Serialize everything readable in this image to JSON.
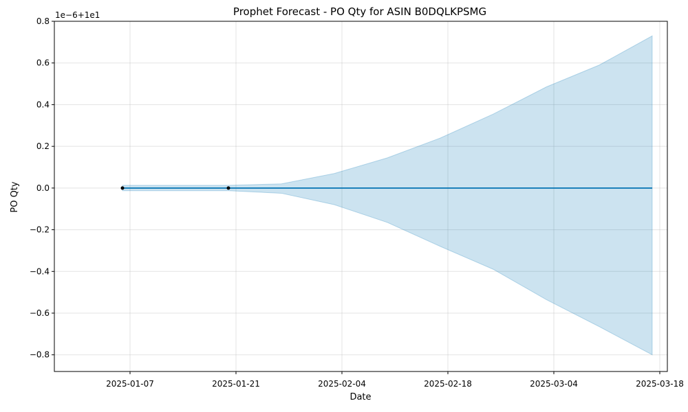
{
  "chart_data": {
    "type": "line",
    "title": "Prophet Forecast - PO Qty for ASIN B0DQLKPSMG",
    "xlabel": "Date",
    "ylabel": "PO Qty",
    "y_offset_label": "1e−6+1e1",
    "ylim": [
      -0.88,
      0.8
    ],
    "y_ticks": [
      -0.8,
      -0.6,
      -0.4,
      -0.2,
      0.0,
      0.2,
      0.4,
      0.6,
      0.8
    ],
    "y_tick_labels": [
      "−0.8",
      "−0.6",
      "−0.4",
      "−0.2",
      "0.0",
      "0.2",
      "0.4",
      "0.6",
      "0.8"
    ],
    "xlim": [
      "2024-12-28",
      "2025-03-19"
    ],
    "x_ticks": [
      "2025-01-07",
      "2025-01-21",
      "2025-02-04",
      "2025-02-18",
      "2025-03-04",
      "2025-03-18"
    ],
    "grid": true,
    "series": [
      {
        "kind": "observed",
        "color": "#000000",
        "points": [
          {
            "x": "2025-01-06",
            "y": 0.0
          },
          {
            "x": "2025-01-20",
            "y": 0.0
          }
        ]
      },
      {
        "kind": "forecast",
        "color": "#0072B2",
        "points": [
          {
            "x": "2025-01-06",
            "y": 0.0
          },
          {
            "x": "2025-03-17",
            "y": 0.0
          }
        ]
      },
      {
        "kind": "uncertainty_interval",
        "color": "#0072B2",
        "opacity": 0.2,
        "x": [
          "2025-01-06",
          "2025-01-20",
          "2025-01-27",
          "2025-02-03",
          "2025-02-10",
          "2025-02-17",
          "2025-02-24",
          "2025-03-03",
          "2025-03-10",
          "2025-03-17"
        ],
        "upper": [
          0.013,
          0.013,
          0.02,
          0.07,
          0.145,
          0.24,
          0.355,
          0.485,
          0.59,
          0.73
        ],
        "lower": [
          -0.013,
          -0.013,
          -0.025,
          -0.08,
          -0.165,
          -0.28,
          -0.39,
          -0.535,
          -0.665,
          -0.8
        ]
      }
    ]
  }
}
